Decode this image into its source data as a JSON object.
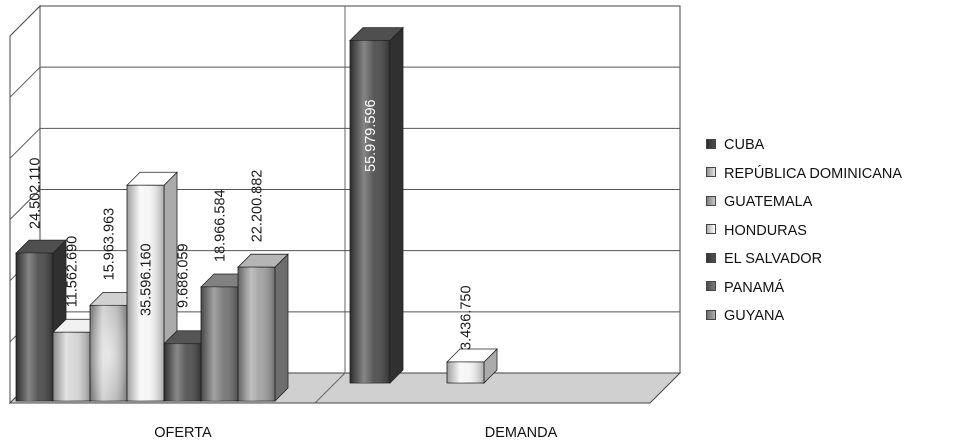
{
  "chart_data": {
    "type": "bar",
    "categories": [
      "OFERTA",
      "DEMANDA"
    ],
    "series": [
      {
        "name": "CUBA",
        "color": "#454545",
        "values": [
          24502110,
          55979596
        ]
      },
      {
        "name": "REPÚBLICA DOMINICANA",
        "color": "#d2d2d2",
        "values": [
          11562690,
          null
        ]
      },
      {
        "name": "GUATEMALA",
        "color": "#b6b6b6",
        "values": [
          15963963,
          null
        ]
      },
      {
        "name": "HONDURAS",
        "color": "#f4f4f4",
        "values": [
          35596160,
          3436750
        ]
      },
      {
        "name": "EL SALVADOR",
        "color": "#4a4a4a",
        "values": [
          9686059,
          null
        ]
      },
      {
        "name": "PANAMÁ",
        "color": "#707070",
        "values": [
          18966584,
          null
        ]
      },
      {
        "name": "GUYANA",
        "color": "#9d9d9d",
        "values": [
          22200882,
          null
        ]
      }
    ],
    "data_labels": [
      [
        "24.502.110",
        "55.979.596"
      ],
      [
        "11.562.690",
        ""
      ],
      [
        "15.963.963",
        ""
      ],
      [
        "35.596.160",
        "3.436.750"
      ],
      [
        "9.686.059",
        ""
      ],
      [
        "18.966.584",
        ""
      ],
      [
        "22.200.882",
        ""
      ]
    ],
    "ylim": [
      0,
      60000000
    ],
    "grid": true,
    "legend": "right",
    "title": "",
    "xlabel": "",
    "ylabel": ""
  }
}
